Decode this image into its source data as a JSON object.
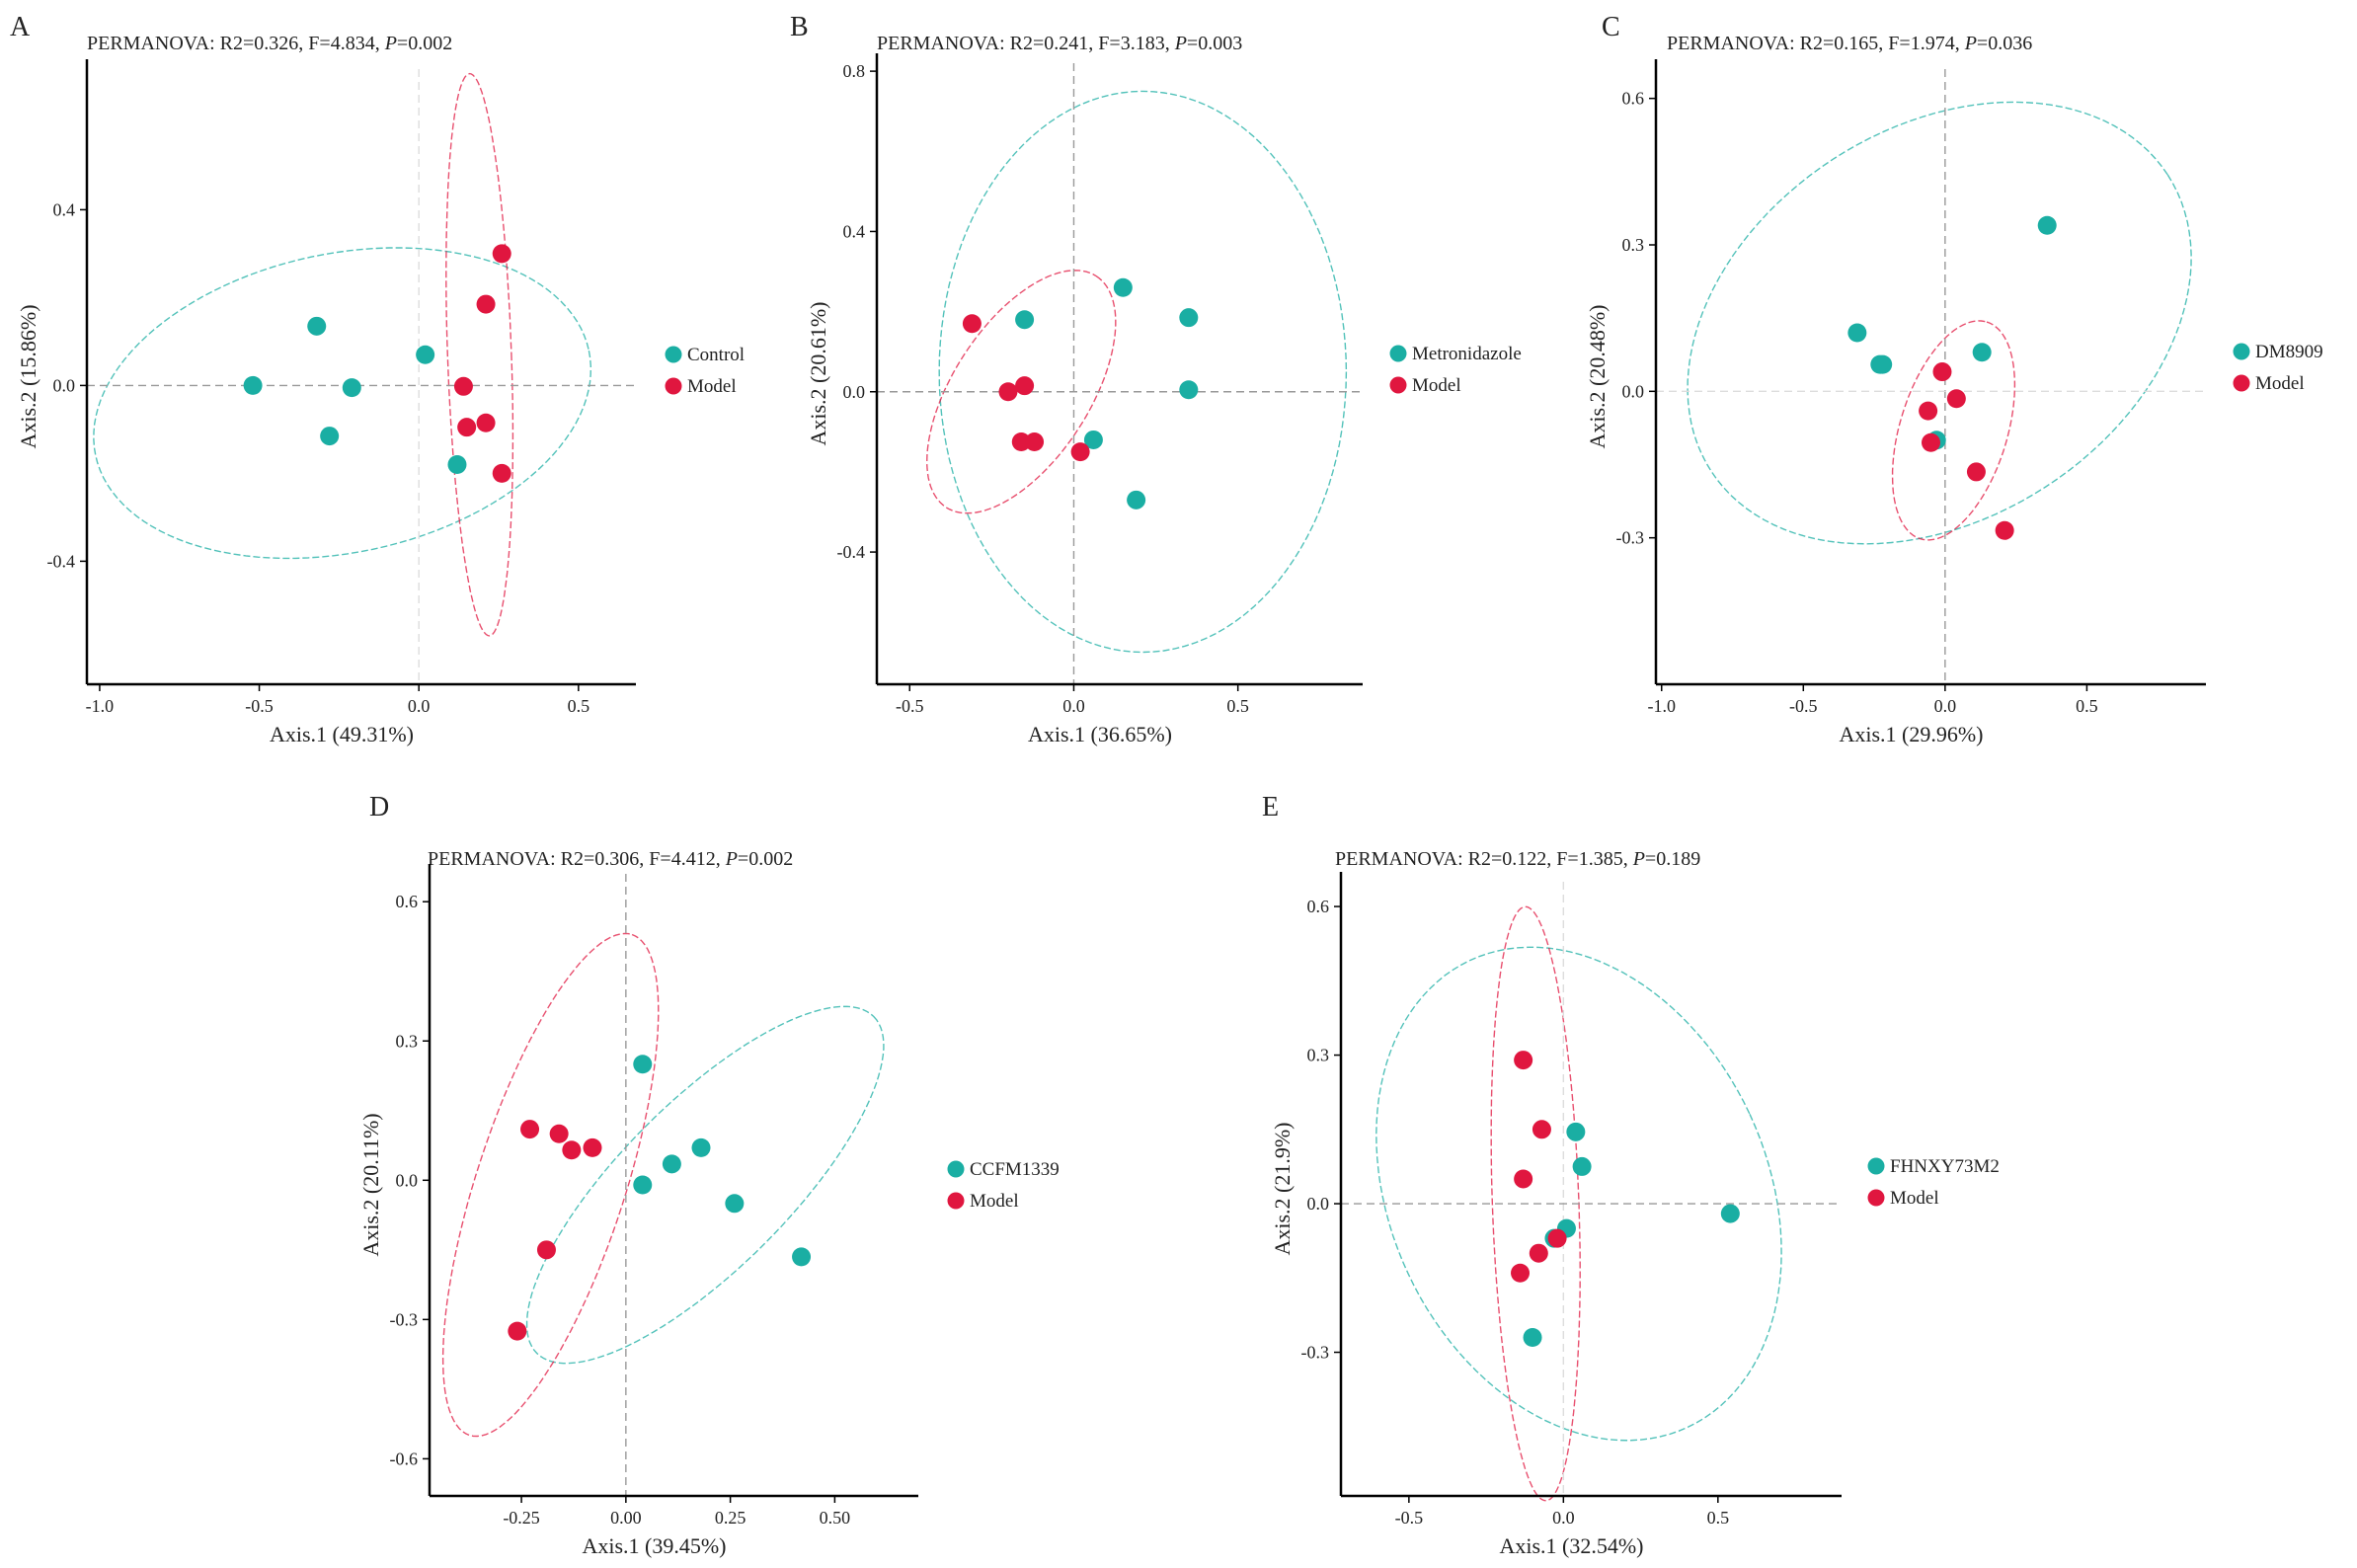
{
  "chart_data": [
    {
      "type": "scatter",
      "panel": "A",
      "title_stats": "R2=0.326, F=4.834, ",
      "title_p": "=0.002",
      "xlabel": "Axis.1 (49.31%)",
      "ylabel": "Axis.2 (15.86%)",
      "xlim": [
        -1.04,
        0.68
      ],
      "ylim": [
        -0.68,
        0.72
      ],
      "xticks": [
        -1.0,
        -0.5,
        0.0,
        0.5
      ],
      "xtick_labels": [
        "-1.0",
        "-0.5",
        "0.0",
        "0.5"
      ],
      "yticks": [
        -0.4,
        0.0,
        0.4
      ],
      "ytick_labels": [
        "-0.4",
        "0.0",
        "0.4"
      ],
      "zero_x_style": "light",
      "zero_y_style": "dashed",
      "series": [
        {
          "name": "Control",
          "color": "#1aaea3",
          "points": [
            [
              -0.52,
              0.0
            ],
            [
              -0.32,
              0.135
            ],
            [
              -0.21,
              -0.005
            ],
            [
              -0.28,
              -0.115
            ],
            [
              0.02,
              0.07
            ],
            [
              0.12,
              -0.18
            ]
          ],
          "ellipse": {
            "cx": -0.24,
            "cy": -0.04,
            "rx": 0.79,
            "ry": 0.34,
            "angle": -12
          }
        },
        {
          "name": "Model",
          "color": "#e0163f",
          "points": [
            [
              0.26,
              0.3
            ],
            [
              0.21,
              0.185
            ],
            [
              0.14,
              -0.002
            ],
            [
              0.15,
              -0.095
            ],
            [
              0.21,
              -0.085
            ],
            [
              0.26,
              -0.2
            ]
          ],
          "ellipse": {
            "cx": 0.19,
            "cy": 0.07,
            "rx": 0.1,
            "ry": 0.64,
            "angle": -2
          }
        }
      ]
    },
    {
      "type": "scatter",
      "panel": "B",
      "title_stats": "R2=0.241, F=3.183, ",
      "title_p": "=0.003",
      "xlabel": "Axis.1 (36.65%)",
      "ylabel": "Axis.2 (20.61%)",
      "xlim": [
        -0.6,
        0.88
      ],
      "ylim": [
        -0.73,
        0.82
      ],
      "xticks": [
        -0.5,
        0.0,
        0.5
      ],
      "xtick_labels": [
        "-0.5",
        "0.0",
        "0.5"
      ],
      "yticks": [
        -0.4,
        0.0,
        0.4,
        0.8
      ],
      "ytick_labels": [
        "-0.4",
        "0.0",
        "0.4",
        "0.8"
      ],
      "zero_x_style": "dashed",
      "zero_y_style": "dashed",
      "series": [
        {
          "name": "Metronidazole",
          "color": "#1aaea3",
          "points": [
            [
              0.15,
              0.26
            ],
            [
              0.35,
              0.185
            ],
            [
              0.35,
              0.005
            ],
            [
              -0.15,
              0.18
            ],
            [
              0.06,
              -0.12
            ],
            [
              0.19,
              -0.27
            ]
          ],
          "ellipse": {
            "cx": 0.21,
            "cy": 0.05,
            "rx": 0.62,
            "ry": 0.7,
            "angle": 0
          }
        },
        {
          "name": "Model",
          "color": "#e0163f",
          "points": [
            [
              -0.31,
              0.17
            ],
            [
              -0.2,
              0.0
            ],
            [
              -0.15,
              0.015
            ],
            [
              -0.16,
              -0.125
            ],
            [
              -0.12,
              -0.125
            ],
            [
              0.02,
              -0.15
            ]
          ],
          "ellipse": {
            "cx": -0.16,
            "cy": 0.0,
            "rx": 0.42,
            "ry": 0.17,
            "angle": -57
          }
        }
      ]
    },
    {
      "type": "scatter",
      "panel": "C",
      "title_stats": "R2=0.165, F=1.974, ",
      "title_p": "=0.036",
      "xlabel": "Axis.1 (29.96%)",
      "ylabel": "Axis.2 (20.48%)",
      "xlim": [
        -1.02,
        0.92
      ],
      "ylim": [
        -0.6,
        0.66
      ],
      "xticks": [
        -1.0,
        -0.5,
        0.0,
        0.5
      ],
      "xtick_labels": [
        "-1.0",
        "-0.5",
        "0.0",
        "0.5"
      ],
      "yticks": [
        -0.3,
        0.0,
        0.3,
        0.6
      ],
      "ytick_labels": [
        "-0.3",
        "0.0",
        "0.3",
        "0.6"
      ],
      "zero_x_style": "dashed",
      "zero_y_style": "light",
      "series": [
        {
          "name": "DM8909",
          "color": "#1aaea3",
          "points": [
            [
              0.36,
              0.34
            ],
            [
              -0.31,
              0.12
            ],
            [
              -0.23,
              0.055
            ],
            [
              -0.22,
              0.055
            ],
            [
              0.13,
              0.08
            ],
            [
              -0.03,
              -0.1
            ]
          ],
          "ellipse": {
            "cx": -0.02,
            "cy": 0.14,
            "rx": 0.96,
            "ry": 0.4,
            "angle": -33
          }
        },
        {
          "name": "Model",
          "color": "#e0163f",
          "points": [
            [
              -0.01,
              0.04
            ],
            [
              0.04,
              -0.015
            ],
            [
              -0.06,
              -0.04
            ],
            [
              -0.05,
              -0.105
            ],
            [
              0.11,
              -0.165
            ],
            [
              0.21,
              -0.285
            ]
          ],
          "ellipse": {
            "cx": 0.03,
            "cy": -0.08,
            "rx": 0.4,
            "ry": 0.11,
            "angle": -73
          }
        }
      ]
    },
    {
      "type": "scatter",
      "panel": "D",
      "title_stats": "R2=0.306, F=4.412, ",
      "title_p": "=0.002",
      "xlabel": "Axis.1 (39.45%)",
      "ylabel": "Axis.2 (20.11%)",
      "xlim": [
        -0.47,
        0.7
      ],
      "ylim": [
        -0.68,
        0.66
      ],
      "xticks": [
        -0.25,
        0.0,
        0.25,
        0.5
      ],
      "xtick_labels": [
        "-0.25",
        "0.00",
        "0.25",
        "0.50"
      ],
      "yticks": [
        -0.6,
        -0.3,
        0.0,
        0.3,
        0.6
      ],
      "ytick_labels": [
        "-0.6",
        "-0.3",
        "0.0",
        "0.3",
        "0.6"
      ],
      "zero_x_style": "dashed",
      "zero_y_style": "none",
      "series": [
        {
          "name": "CCFM1339",
          "color": "#1aaea3",
          "points": [
            [
              0.04,
              0.25
            ],
            [
              0.18,
              0.07
            ],
            [
              0.11,
              0.035
            ],
            [
              0.04,
              -0.01
            ],
            [
              0.26,
              -0.05
            ],
            [
              0.42,
              -0.165
            ]
          ],
          "ellipse": {
            "cx": 0.19,
            "cy": -0.01,
            "rx": 0.57,
            "ry": 0.18,
            "angle": -45
          }
        },
        {
          "name": "Model",
          "color": "#e0163f",
          "points": [
            [
              -0.23,
              0.11
            ],
            [
              -0.16,
              0.1
            ],
            [
              -0.13,
              0.065
            ],
            [
              -0.08,
              0.07
            ],
            [
              -0.19,
              -0.15
            ],
            [
              -0.26,
              -0.325
            ]
          ],
          "ellipse": {
            "cx": -0.18,
            "cy": -0.01,
            "rx": 0.63,
            "ry": 0.16,
            "angle": -72
          }
        }
      ]
    },
    {
      "type": "scatter",
      "panel": "E",
      "title_stats": "R2=0.122, F=1.385, ",
      "title_p": "=0.189",
      "xlabel": "Axis.1 (32.54%)",
      "ylabel": "Axis.2 (21.9%)",
      "xlim": [
        -0.72,
        0.9
      ],
      "ylim": [
        -0.59,
        0.65
      ],
      "xticks": [
        -0.5,
        0.0,
        0.5
      ],
      "xtick_labels": [
        "-0.5",
        "0.0",
        "0.5"
      ],
      "yticks": [
        -0.3,
        0.0,
        0.3,
        0.6
      ],
      "ytick_labels": [
        "-0.3",
        "0.0",
        "0.3",
        "0.6"
      ],
      "zero_x_style": "light",
      "zero_y_style": "dashed",
      "series": [
        {
          "name": "FHNXY73M2",
          "color": "#1aaea3",
          "points": [
            [
              0.04,
              0.145
            ],
            [
              0.06,
              0.075
            ],
            [
              0.54,
              -0.02
            ],
            [
              0.01,
              -0.05
            ],
            [
              -0.03,
              -0.07
            ],
            [
              -0.1,
              -0.27
            ]
          ],
          "ellipse": {
            "cx": 0.05,
            "cy": 0.02,
            "rx": 0.61,
            "ry": 0.52,
            "angle": -25
          }
        },
        {
          "name": "Model",
          "color": "#e0163f",
          "points": [
            [
              -0.13,
              0.29
            ],
            [
              -0.07,
              0.15
            ],
            [
              -0.13,
              0.05
            ],
            [
              -0.02,
              -0.07
            ],
            [
              -0.08,
              -0.1
            ],
            [
              -0.14,
              -0.14
            ]
          ],
          "ellipse": {
            "cx": -0.09,
            "cy": 0.0,
            "rx": 0.14,
            "ry": 0.6,
            "angle": -2
          }
        }
      ]
    }
  ],
  "title_prefix": "PERMANOVA: ",
  "title_p_symbol": "P"
}
